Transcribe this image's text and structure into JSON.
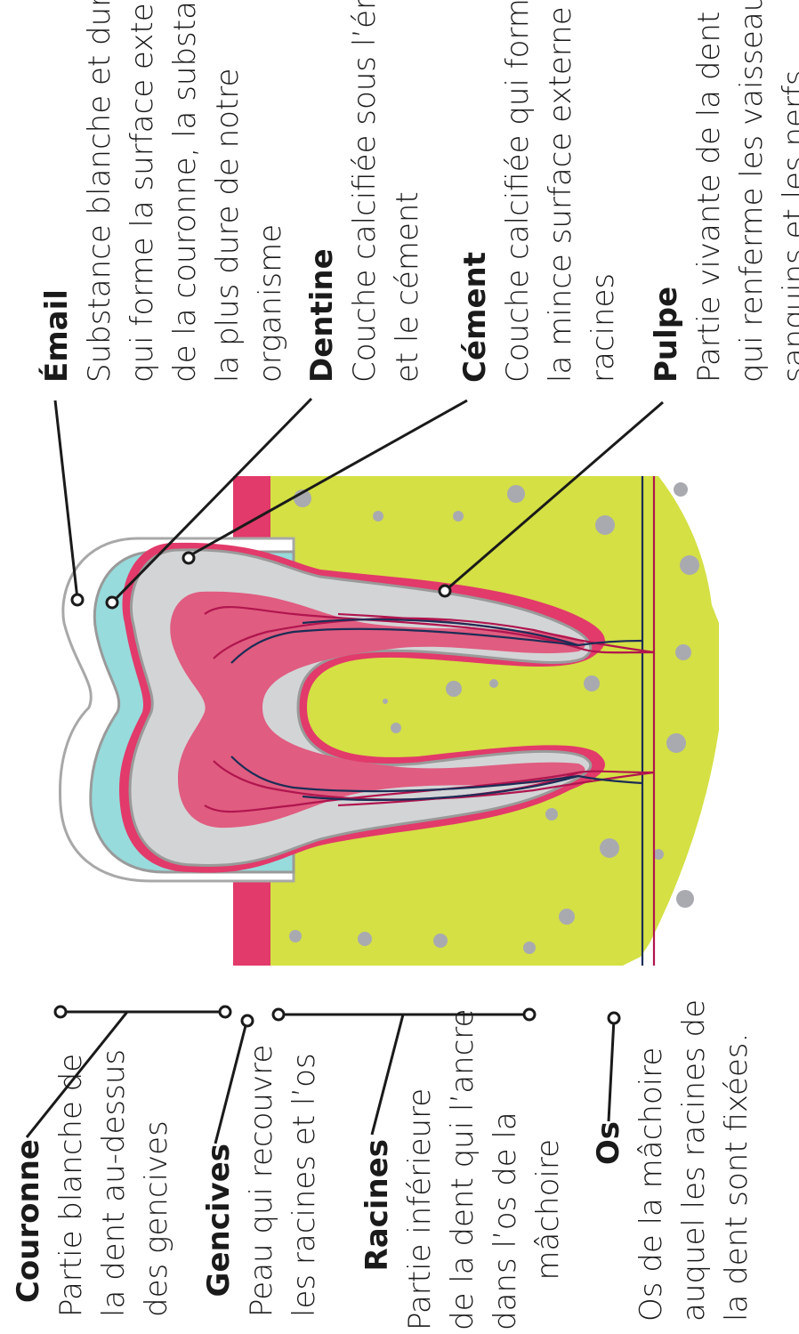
{
  "colors": {
    "bone": "#d4e044",
    "gum": "#e23a6a",
    "dentin": "#d3d4d6",
    "enamel": "#97dbdc",
    "pulp": "#e05c80",
    "cementum": "#9a9a9a",
    "dots": "#a9aab0",
    "nerve": "#1c2d56",
    "vessel": "#b0154e",
    "outline": "#1a1a1a"
  },
  "labels": {
    "email": {
      "title": "Émail",
      "lines": [
        "Substance blanche et dure",
        "qui forme la surface externe",
        "de la couronne, la substance",
        "la plus dure de notre",
        "organisme"
      ]
    },
    "dentine": {
      "title": "Dentine",
      "lines": [
        "Couche calcifiée sous l’émail",
        "et le cément"
      ]
    },
    "cement": {
      "title": "Cément",
      "lines": [
        "Couche calcifiée qui forme",
        "la mince surface externe des",
        "racines"
      ]
    },
    "pulpe": {
      "title": "Pulpe",
      "lines": [
        "Partie vivante de la dent",
        "qui renferme les vaisseaux",
        "sanguins et les nerfs"
      ]
    },
    "couronne": {
      "title": "Couronne",
      "lines": [
        "Partie blanche de",
        "la dent au-dessus",
        "des gencives"
      ]
    },
    "gencives": {
      "title": "Gencives",
      "lines": [
        "Peau qui recouvre",
        "les racines et l’os"
      ]
    },
    "racines": {
      "title": "Racines",
      "lines": [
        "Partie inférieure",
        "de la dent qui l’ancre",
        "dans l’os de la",
        "mâchoire"
      ]
    },
    "os": {
      "title": "Os",
      "lines": [
        "Os de la mâchoire",
        "auquel les racines de",
        "la dent sont fixées."
      ]
    }
  }
}
